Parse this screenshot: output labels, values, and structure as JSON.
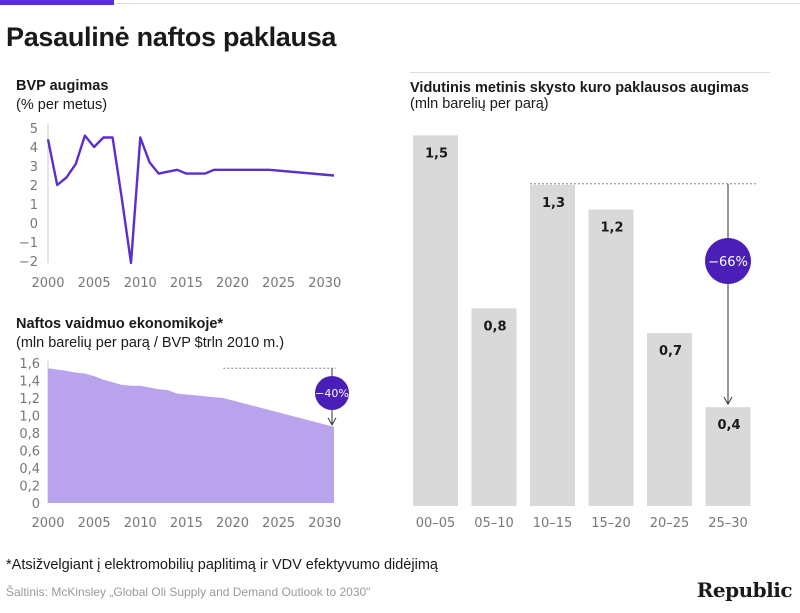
{
  "title": "Pasaulinė naftos paklausa",
  "footnote": "*Atsižvelgiant į elektromobilių paplitimą ir VDV efektyvumo didėjimą",
  "source": "Šaltinis: McKinsley „Global Oli Supply and Demand Outlook to 2030\"",
  "brand": "Republic",
  "colors": {
    "accent": "#5b2ecf",
    "line": "#5b2ecf",
    "area": "#b8a3ec",
    "bar": "#d9d9d9",
    "badge": "#4a1fb8"
  },
  "chart_data": [
    {
      "type": "line",
      "title": "BVP augimas",
      "subtitle": "(% per metus)",
      "x": [
        2000,
        2001,
        2002,
        2003,
        2004,
        2005,
        2006,
        2007,
        2008,
        2009,
        2010,
        2011,
        2012,
        2013,
        2014,
        2015,
        2016,
        2017,
        2018,
        2019,
        2020,
        2024,
        2031
      ],
      "values": [
        4.4,
        2.0,
        2.4,
        3.1,
        4.6,
        4.0,
        4.5,
        4.5,
        1.3,
        -2.1,
        4.5,
        3.2,
        2.6,
        2.7,
        2.8,
        2.6,
        2.6,
        2.6,
        2.8,
        2.8,
        2.8,
        2.8,
        2.5
      ],
      "ylim": [
        -2,
        5
      ],
      "yticks": [
        "−2",
        "−1",
        "0",
        "1",
        "2",
        "3",
        "4",
        "5"
      ],
      "xticks": [
        "2000",
        "2005",
        "2010",
        "2015",
        "2020",
        "2025",
        "2030"
      ]
    },
    {
      "type": "area",
      "title": "Naftos vaidmuo ekonomikoje*",
      "subtitle": "(mln barelių per parą / BVP $trln 2010 m.)",
      "x": [
        2000,
        2002,
        2003,
        2004,
        2005,
        2006,
        2007,
        2008,
        2009,
        2010,
        2011,
        2012,
        2013,
        2014,
        2015,
        2016,
        2017,
        2018,
        2019,
        2031
      ],
      "values": [
        1.54,
        1.51,
        1.49,
        1.48,
        1.45,
        1.41,
        1.38,
        1.35,
        1.34,
        1.34,
        1.32,
        1.3,
        1.29,
        1.25,
        1.24,
        1.23,
        1.22,
        1.21,
        1.2,
        0.87
      ],
      "ylim": [
        0,
        1.6
      ],
      "yticks": [
        "0",
        "0,2",
        "0,4",
        "0,6",
        "0,8",
        "1,0",
        "1,2",
        "1,4",
        "1,6"
      ],
      "xticks": [
        "2000",
        "2005",
        "2010",
        "2015",
        "2020",
        "2025",
        "2030"
      ],
      "annotation": "−40%"
    },
    {
      "type": "bar",
      "title": "Vidutinis metinis skysto kuro paklausos augimas",
      "subtitle": "(mln barelių per parą)",
      "categories": [
        "00–05",
        "05–10",
        "10–15",
        "15–20",
        "20–25",
        "25–30"
      ],
      "values": [
        1.5,
        0.8,
        1.3,
        1.2,
        0.7,
        0.4
      ],
      "value_labels": [
        "1,5",
        "0,8",
        "1,3",
        "1,2",
        "0,7",
        "0,4"
      ],
      "ylim": [
        0,
        1.55
      ],
      "annotation": "−66%"
    }
  ]
}
